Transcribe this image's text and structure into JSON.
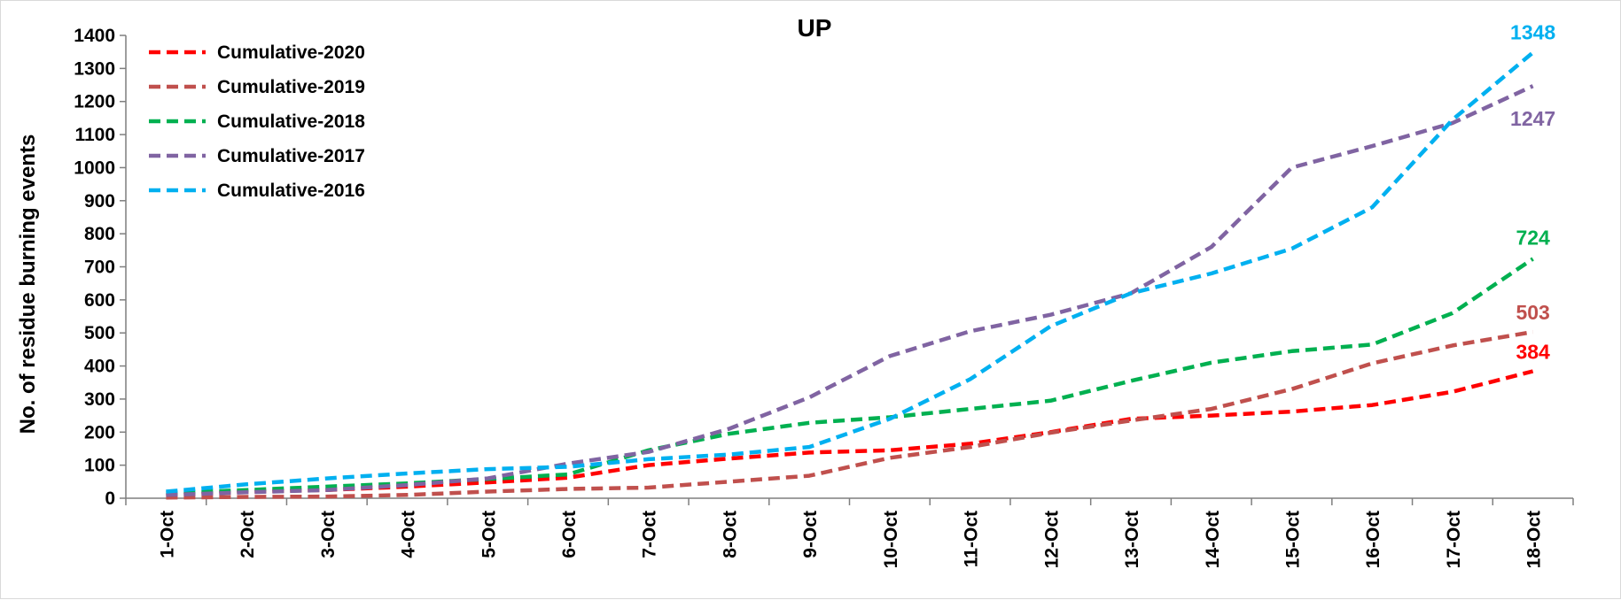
{
  "chart_data": {
    "type": "line",
    "title": "UP",
    "xlabel": "",
    "ylabel": "No. of residue burning events",
    "ylim": [
      0,
      1400
    ],
    "yticks": [
      0,
      100,
      200,
      300,
      400,
      500,
      600,
      700,
      800,
      900,
      1000,
      1100,
      1200,
      1300,
      1400
    ],
    "grid": false,
    "legend_position": "top-left",
    "categories": [
      "1-Oct",
      "2-Oct",
      "3-Oct",
      "4-Oct",
      "5-Oct",
      "6-Oct",
      "7-Oct",
      "8-Oct",
      "9-Oct",
      "10-Oct",
      "11-Oct",
      "12-Oct",
      "13-Oct",
      "14-Oct",
      "15-Oct",
      "16-Oct",
      "17-Oct",
      "18-Oct"
    ],
    "series": [
      {
        "name": "Cumulative-2020",
        "color": "#ff0000",
        "end_label": "384",
        "values": [
          8,
          20,
          25,
          35,
          48,
          62,
          100,
          120,
          138,
          145,
          165,
          200,
          240,
          250,
          262,
          282,
          322,
          384
        ]
      },
      {
        "name": "Cumulative-2019",
        "color": "#c0504d",
        "end_label": "503",
        "values": [
          2,
          4,
          5,
          10,
          20,
          28,
          32,
          50,
          68,
          122,
          155,
          198,
          235,
          270,
          330,
          408,
          462,
          503
        ]
      },
      {
        "name": "Cumulative-2018",
        "color": "#00b050",
        "end_label": "724",
        "values": [
          15,
          25,
          35,
          45,
          58,
          72,
          145,
          195,
          228,
          245,
          270,
          295,
          355,
          410,
          445,
          465,
          560,
          724
        ]
      },
      {
        "name": "Cumulative-2017",
        "color": "#8064a2",
        "end_label": "1247",
        "values": [
          10,
          18,
          25,
          40,
          60,
          105,
          140,
          210,
          305,
          430,
          505,
          555,
          620,
          760,
          1000,
          1065,
          1135,
          1247
        ]
      },
      {
        "name": "Cumulative-2016",
        "color": "#00b0f0",
        "end_label": "1348",
        "values": [
          20,
          42,
          60,
          75,
          88,
          95,
          118,
          132,
          155,
          240,
          360,
          520,
          620,
          680,
          755,
          880,
          1145,
          1348
        ]
      }
    ]
  }
}
